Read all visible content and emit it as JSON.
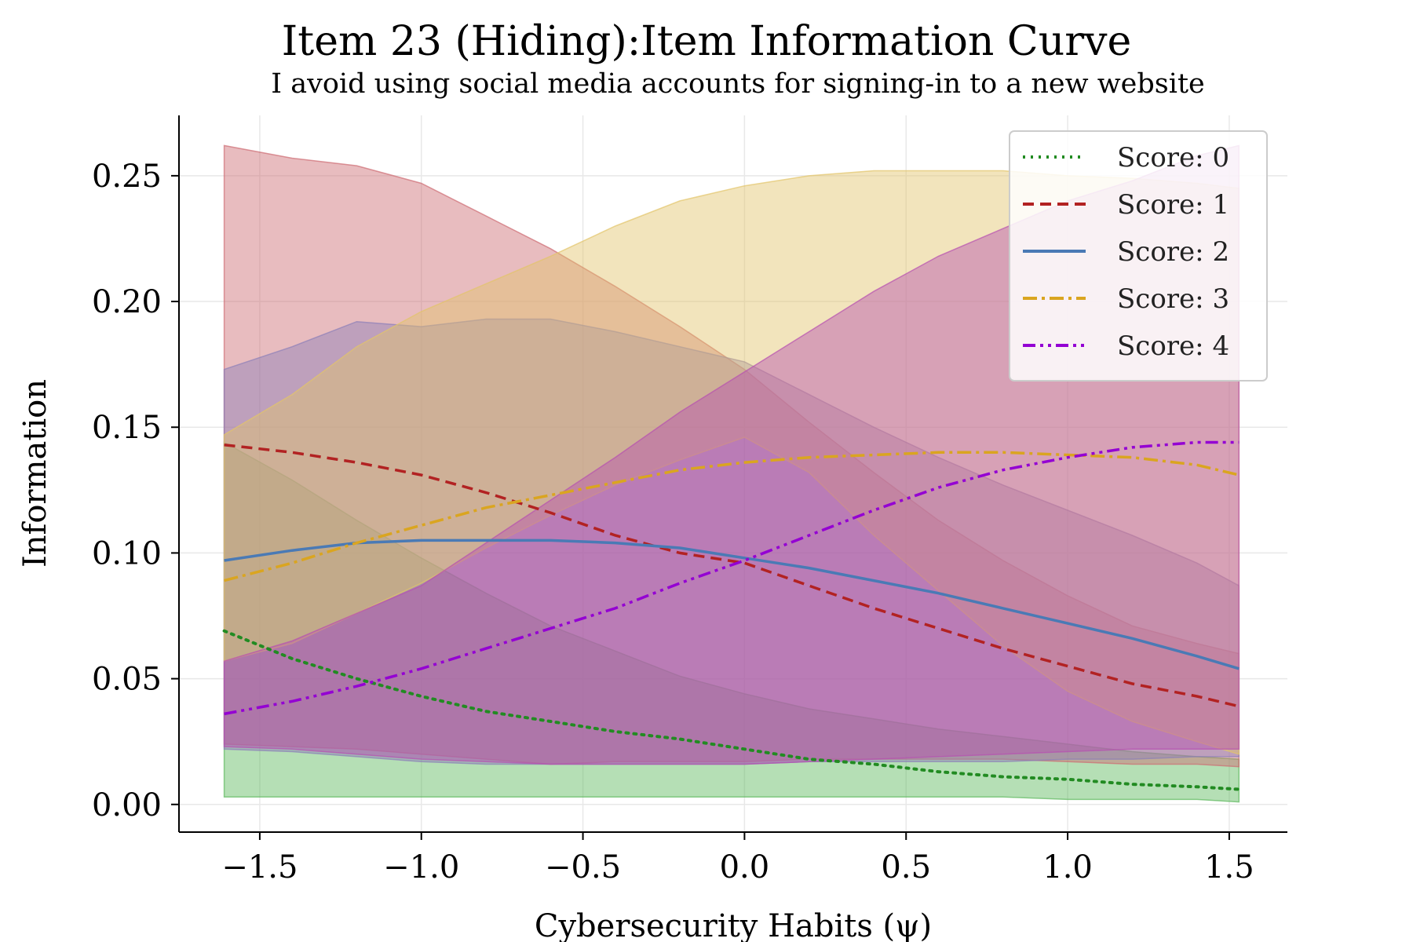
{
  "chart_data": {
    "type": "line",
    "title": "Item 23 (Hiding):Item Information Curve",
    "subtitle": "I avoid using social media accounts for signing-in to a new website",
    "xlabel": "Cybersecurity Habits (ψ)",
    "ylabel": "Information",
    "xlim": [
      -1.75,
      1.68
    ],
    "ylim": [
      -0.011,
      0.274
    ],
    "xticks": [
      -1.5,
      -1.0,
      -0.5,
      0.0,
      0.5,
      1.0,
      1.5
    ],
    "xtick_labels": [
      "−1.5",
      "−1.0",
      "−0.5",
      "0.0",
      "0.5",
      "1.0",
      "1.5"
    ],
    "yticks": [
      0.0,
      0.05,
      0.1,
      0.15,
      0.2,
      0.25
    ],
    "ytick_labels": [
      "0.00",
      "0.05",
      "0.10",
      "0.15",
      "0.20",
      "0.25"
    ],
    "grid": true,
    "legend_position": "top-right",
    "x": [
      -1.61,
      -1.4,
      -1.2,
      -1.0,
      -0.8,
      -0.6,
      -0.4,
      -0.2,
      0.0,
      0.2,
      0.4,
      0.6,
      0.8,
      1.0,
      1.2,
      1.4,
      1.53
    ],
    "series": [
      {
        "name": "Score: 0",
        "color": "#228b22",
        "dash": "dotted",
        "values": [
          0.069,
          0.058,
          0.05,
          0.043,
          0.037,
          0.033,
          0.029,
          0.026,
          0.022,
          0.018,
          0.016,
          0.013,
          0.011,
          0.01,
          0.008,
          0.007,
          0.006
        ],
        "band_upper": [
          0.144,
          0.129,
          0.113,
          0.098,
          0.084,
          0.071,
          0.061,
          0.051,
          0.044,
          0.038,
          0.034,
          0.03,
          0.027,
          0.024,
          0.021,
          0.019,
          0.018
        ],
        "band_lower": [
          0.003,
          0.003,
          0.003,
          0.003,
          0.003,
          0.003,
          0.003,
          0.003,
          0.003,
          0.003,
          0.003,
          0.003,
          0.003,
          0.002,
          0.002,
          0.002,
          0.001
        ]
      },
      {
        "name": "Score: 1",
        "color": "#b22222",
        "dash": "dashed",
        "values": [
          0.143,
          0.14,
          0.136,
          0.131,
          0.124,
          0.116,
          0.107,
          0.1,
          0.096,
          0.087,
          0.078,
          0.07,
          0.062,
          0.055,
          0.048,
          0.043,
          0.039
        ],
        "band_upper": [
          0.262,
          0.257,
          0.254,
          0.247,
          0.234,
          0.221,
          0.206,
          0.19,
          0.173,
          0.152,
          0.132,
          0.113,
          0.097,
          0.083,
          0.071,
          0.064,
          0.06
        ],
        "band_lower": [
          0.024,
          0.023,
          0.022,
          0.02,
          0.018,
          0.016,
          0.017,
          0.017,
          0.017,
          0.018,
          0.018,
          0.018,
          0.018,
          0.017,
          0.016,
          0.016,
          0.015
        ]
      },
      {
        "name": "Score: 2",
        "color": "#4a7ab5",
        "dash": "solid",
        "values": [
          0.097,
          0.101,
          0.104,
          0.105,
          0.105,
          0.105,
          0.104,
          0.102,
          0.098,
          0.094,
          0.089,
          0.084,
          0.078,
          0.072,
          0.066,
          0.059,
          0.054
        ],
        "band_upper": [
          0.173,
          0.182,
          0.192,
          0.19,
          0.193,
          0.193,
          0.188,
          0.182,
          0.176,
          0.163,
          0.15,
          0.138,
          0.127,
          0.117,
          0.107,
          0.096,
          0.087
        ],
        "band_lower": [
          0.022,
          0.021,
          0.019,
          0.017,
          0.016,
          0.016,
          0.016,
          0.016,
          0.016,
          0.017,
          0.017,
          0.017,
          0.017,
          0.018,
          0.018,
          0.019,
          0.019
        ]
      },
      {
        "name": "Score: 3",
        "color": "#daa520",
        "dash": "dashdot",
        "values": [
          0.089,
          0.096,
          0.104,
          0.111,
          0.118,
          0.123,
          0.128,
          0.133,
          0.136,
          0.138,
          0.139,
          0.14,
          0.14,
          0.139,
          0.138,
          0.135,
          0.131
        ],
        "band_upper": [
          0.147,
          0.163,
          0.182,
          0.196,
          0.207,
          0.218,
          0.23,
          0.24,
          0.246,
          0.25,
          0.252,
          0.252,
          0.252,
          0.25,
          0.249,
          0.247,
          0.245
        ],
        "band_lower": [
          0.057,
          0.064,
          0.076,
          0.088,
          0.102,
          0.115,
          0.127,
          0.137,
          0.146,
          0.132,
          0.107,
          0.085,
          0.063,
          0.045,
          0.033,
          0.025,
          0.02
        ]
      },
      {
        "name": "Score: 4",
        "color": "#9400d3",
        "dash": "dashdotdot",
        "values": [
          0.036,
          0.041,
          0.047,
          0.054,
          0.062,
          0.07,
          0.078,
          0.088,
          0.097,
          0.107,
          0.117,
          0.126,
          0.133,
          0.138,
          0.142,
          0.144,
          0.144
        ],
        "band_upper": [
          0.057,
          0.065,
          0.076,
          0.087,
          0.104,
          0.121,
          0.138,
          0.156,
          0.172,
          0.188,
          0.204,
          0.218,
          0.229,
          0.24,
          0.248,
          0.258,
          0.262
        ],
        "band_lower": [
          0.023,
          0.022,
          0.02,
          0.018,
          0.017,
          0.016,
          0.016,
          0.016,
          0.016,
          0.017,
          0.018,
          0.019,
          0.02,
          0.021,
          0.022,
          0.022,
          0.022
        ]
      }
    ]
  },
  "colors": {
    "score0_band": "#5cb85c",
    "score1_band": "#cd6b72",
    "score2_band": "#8c7fb8",
    "score3_band": "#e3c46a",
    "score4_band": "#b650b0",
    "grid": "#e8e8e8"
  }
}
